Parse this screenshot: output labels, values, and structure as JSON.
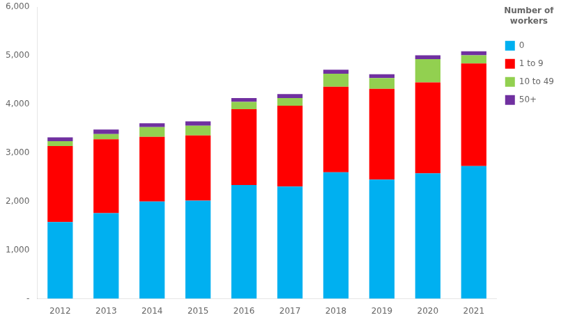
{
  "chart_data": {
    "type": "bar",
    "stacked": true,
    "categories": [
      "2012",
      "2013",
      "2014",
      "2015",
      "2016",
      "2017",
      "2018",
      "2019",
      "2020",
      "2021"
    ],
    "series": [
      {
        "name": "0",
        "color": "#00B0F0",
        "values": [
          1580,
          1760,
          2000,
          2020,
          2340,
          2310,
          2600,
          2450,
          2580,
          2730
        ]
      },
      {
        "name": "1 to 9",
        "color": "#FF0000",
        "values": [
          1560,
          1520,
          1330,
          1340,
          1560,
          1660,
          1760,
          1870,
          1870,
          2110
        ]
      },
      {
        "name": "10 to 49",
        "color": "#92D050",
        "values": [
          100,
          110,
          200,
          200,
          150,
          160,
          270,
          220,
          480,
          170
        ]
      },
      {
        "name": "50+",
        "color": "#7030A0",
        "values": [
          80,
          90,
          80,
          90,
          80,
          80,
          80,
          80,
          80,
          80
        ]
      }
    ],
    "legend_title": "Number of\nworkers",
    "legend": "right",
    "ylim": [
      0,
      6000
    ],
    "yticks": [
      {
        "value": 0,
        "label": "-"
      },
      {
        "value": 1000,
        "label": "1,000"
      },
      {
        "value": 2000,
        "label": "2,000"
      },
      {
        "value": 3000,
        "label": "3,000"
      },
      {
        "value": 4000,
        "label": "4,000"
      },
      {
        "value": 5000,
        "label": "5,000"
      },
      {
        "value": 6000,
        "label": "6,000"
      }
    ],
    "grid": false
  }
}
